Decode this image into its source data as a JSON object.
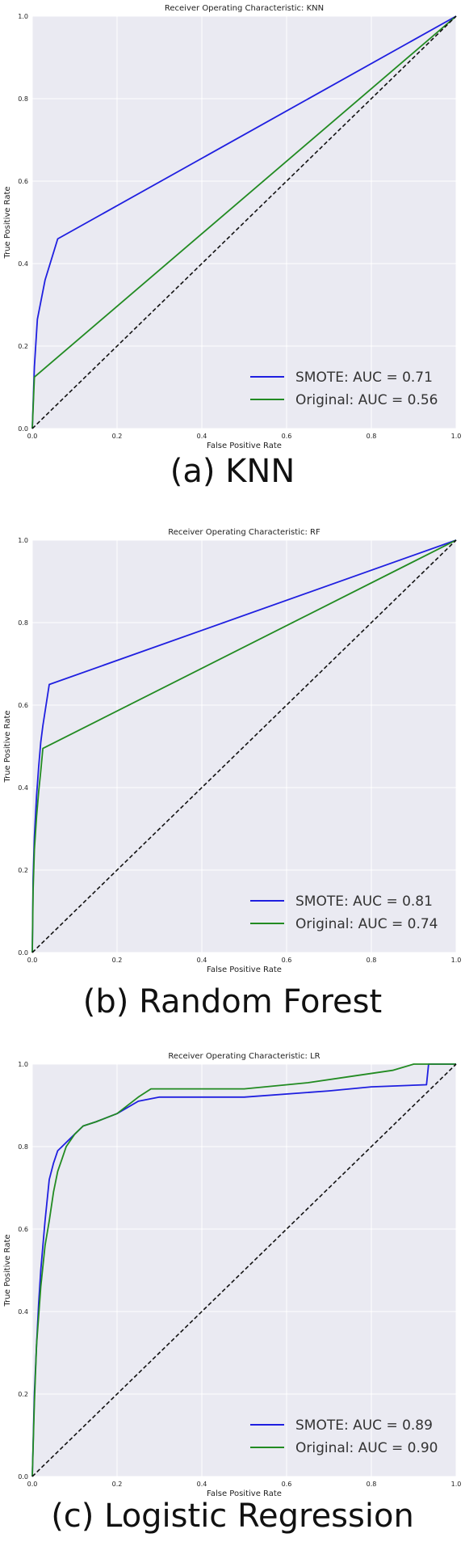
{
  "figures": [
    {
      "caption": "(a) KNN"
    },
    {
      "caption": "(b) Random Forest"
    },
    {
      "caption": "(c) Logistic Regression"
    }
  ],
  "chart_data": [
    {
      "type": "line",
      "title": "Receiver Operating Characteristic: KNN",
      "xlabel": "False Positive Rate",
      "ylabel": "True Positive Rate",
      "xlim": [
        0,
        1
      ],
      "ylim": [
        0,
        1
      ],
      "xticks": [
        "0.0",
        "0.2",
        "0.4",
        "0.6",
        "0.8",
        "1.0"
      ],
      "yticks": [
        "0.0",
        "0.2",
        "0.4",
        "0.6",
        "0.8",
        "1.0"
      ],
      "grid": true,
      "legend_position": "lower-right",
      "series": [
        {
          "name": "SMOTE: AUC = 0.71",
          "color": "#1f1fe0",
          "x": [
            0,
            0.005,
            0.012,
            0.03,
            0.06,
            1.0
          ],
          "y": [
            0,
            0.15,
            0.265,
            0.36,
            0.46,
            1.0
          ]
        },
        {
          "name": "Original: AUC = 0.56",
          "color": "#228b22",
          "x": [
            0,
            0.005,
            1.0
          ],
          "y": [
            0,
            0.125,
            1.0
          ]
        },
        {
          "name": "",
          "color": "#111111",
          "dashed": true,
          "x": [
            0,
            1
          ],
          "y": [
            0,
            1
          ]
        }
      ]
    },
    {
      "type": "line",
      "title": "Receiver Operating Characteristic: RF",
      "xlabel": "False Positive Rate",
      "ylabel": "True Positive Rate",
      "xlim": [
        0,
        1
      ],
      "ylim": [
        0,
        1
      ],
      "xticks": [
        "0.0",
        "0.2",
        "0.4",
        "0.6",
        "0.8",
        "1.0"
      ],
      "yticks": [
        "0.0",
        "0.2",
        "0.4",
        "0.6",
        "0.8",
        "1.0"
      ],
      "grid": true,
      "legend_position": "lower-right",
      "series": [
        {
          "name": "SMOTE: AUC = 0.81",
          "color": "#1f1fe0",
          "x": [
            0,
            0.002,
            0.005,
            0.01,
            0.015,
            0.02,
            0.025,
            0.04,
            1.0
          ],
          "y": [
            0,
            0.18,
            0.28,
            0.38,
            0.45,
            0.51,
            0.55,
            0.65,
            1.0
          ]
        },
        {
          "name": "Original: AUC = 0.74",
          "color": "#228b22",
          "x": [
            0,
            0.002,
            0.005,
            0.01,
            0.015,
            0.02,
            0.025,
            1.0
          ],
          "y": [
            0,
            0.15,
            0.25,
            0.33,
            0.39,
            0.44,
            0.495,
            1.0
          ]
        },
        {
          "name": "",
          "color": "#111111",
          "dashed": true,
          "x": [
            0,
            1
          ],
          "y": [
            0,
            1
          ]
        }
      ]
    },
    {
      "type": "line",
      "title": "Receiver Operating Characteristic: LR",
      "xlabel": "False Positive Rate",
      "ylabel": "True Positive Rate",
      "xlim": [
        0,
        1
      ],
      "ylim": [
        0,
        1
      ],
      "xticks": [
        "0.0",
        "0.2",
        "0.4",
        "0.6",
        "0.8",
        "1.0"
      ],
      "yticks": [
        "0.0",
        "0.2",
        "0.4",
        "0.6",
        "0.8",
        "1.0"
      ],
      "grid": true,
      "legend_position": "lower-right",
      "series": [
        {
          "name": "SMOTE: AUC = 0.89",
          "color": "#1f1fe0",
          "x": [
            0,
            0.005,
            0.01,
            0.015,
            0.02,
            0.03,
            0.04,
            0.05,
            0.06,
            0.07,
            0.08,
            0.1,
            0.12,
            0.15,
            0.2,
            0.25,
            0.3,
            0.5,
            0.7,
            0.8,
            0.93,
            0.935,
            1.0
          ],
          "y": [
            0,
            0.2,
            0.32,
            0.42,
            0.5,
            0.62,
            0.72,
            0.76,
            0.79,
            0.8,
            0.81,
            0.83,
            0.85,
            0.86,
            0.88,
            0.91,
            0.92,
            0.92,
            0.935,
            0.945,
            0.95,
            1.0,
            1.0
          ]
        },
        {
          "name": "Original: AUC = 0.90",
          "color": "#228b22",
          "x": [
            0,
            0.005,
            0.01,
            0.02,
            0.03,
            0.04,
            0.05,
            0.06,
            0.07,
            0.08,
            0.1,
            0.12,
            0.15,
            0.2,
            0.25,
            0.28,
            0.35,
            0.5,
            0.65,
            0.75,
            0.85,
            0.9,
            1.0
          ],
          "y": [
            0,
            0.18,
            0.32,
            0.46,
            0.56,
            0.62,
            0.69,
            0.74,
            0.77,
            0.8,
            0.83,
            0.85,
            0.86,
            0.88,
            0.92,
            0.94,
            0.94,
            0.94,
            0.955,
            0.97,
            0.985,
            1.0,
            1.0
          ]
        },
        {
          "name": "",
          "color": "#111111",
          "dashed": true,
          "x": [
            0,
            1
          ],
          "y": [
            0,
            1
          ]
        }
      ]
    }
  ]
}
